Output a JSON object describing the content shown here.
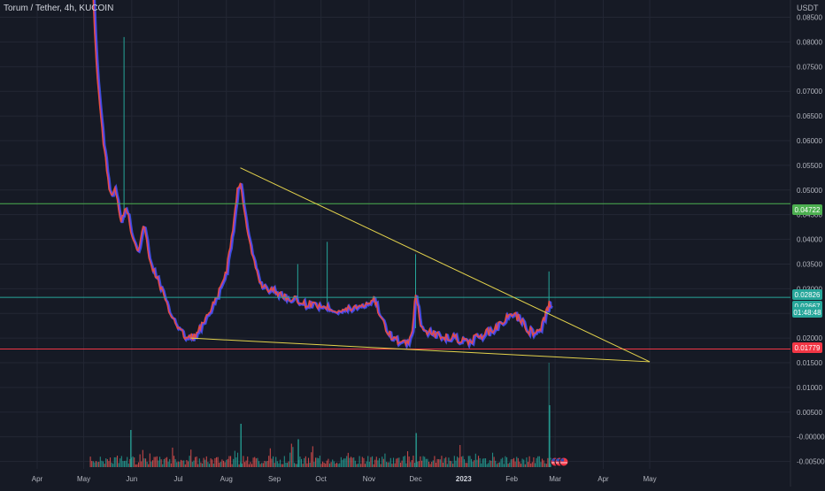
{
  "header": {
    "title": "Torum / Tether, 4h, KUCOIN",
    "currency": "USDT"
  },
  "colors": {
    "background": "#161a25",
    "grid": "#232734",
    "trendline": "#e4d34c",
    "resistance_line": "#4caf50",
    "support_line": "#f23645",
    "volume_up": "#26a69a",
    "volume_down": "#ef5350",
    "price_line_gradient": [
      "#f2512f",
      "#7b3ff2",
      "#3b5bf2"
    ]
  },
  "chart_data": {
    "type": "candlestick",
    "symbol": "Torum / Tether",
    "interval": "4h",
    "exchange": "KUCOIN",
    "quote": "USDT",
    "x_ticks": [
      "Apr",
      "May",
      "Jun",
      "Jul",
      "Aug",
      "Sep",
      "Oct",
      "Nov",
      "Dec",
      "2023",
      "Feb",
      "Mar",
      "Apr",
      "May"
    ],
    "y_ticks": [
      "0.08500",
      "0.08000",
      "0.07500",
      "0.07000",
      "0.06500",
      "0.06000",
      "0.05500",
      "0.05000",
      "0.04500",
      "0.04000",
      "0.03500",
      "0.03000",
      "0.02500",
      "0.02000",
      "0.01500",
      "0.01000",
      "0.00500",
      "-0.00000",
      "-0.00500"
    ],
    "ylim": [
      -0.0065,
      0.0885
    ],
    "price_path": [
      [
        "2022-05-07",
        0.089
      ],
      [
        "2022-05-09",
        0.076
      ],
      [
        "2022-05-12",
        0.064
      ],
      [
        "2022-05-15",
        0.056
      ],
      [
        "2022-05-18",
        0.049
      ],
      [
        "2022-05-21",
        0.05
      ],
      [
        "2022-05-25",
        0.044
      ],
      [
        "2022-05-28",
        0.047
      ],
      [
        "2022-06-01",
        0.041
      ],
      [
        "2022-06-05",
        0.038
      ],
      [
        "2022-06-09",
        0.043
      ],
      [
        "2022-06-12",
        0.036
      ],
      [
        "2022-06-16",
        0.033
      ],
      [
        "2022-06-20",
        0.03
      ],
      [
        "2022-06-24",
        0.026
      ],
      [
        "2022-06-28",
        0.024
      ],
      [
        "2022-07-02",
        0.0215
      ],
      [
        "2022-07-06",
        0.02
      ],
      [
        "2022-07-12",
        0.0205
      ],
      [
        "2022-07-16",
        0.0225
      ],
      [
        "2022-07-20",
        0.0245
      ],
      [
        "2022-07-24",
        0.027
      ],
      [
        "2022-07-28",
        0.03
      ],
      [
        "2022-08-01",
        0.034
      ],
      [
        "2022-08-05",
        0.042
      ],
      [
        "2022-08-08",
        0.05
      ],
      [
        "2022-08-10",
        0.052
      ],
      [
        "2022-08-14",
        0.042
      ],
      [
        "2022-08-18",
        0.036
      ],
      [
        "2022-08-23",
        0.031
      ],
      [
        "2022-08-28",
        0.03
      ],
      [
        "2022-09-04",
        0.029
      ],
      [
        "2022-09-12",
        0.028
      ],
      [
        "2022-09-20",
        0.027
      ],
      [
        "2022-09-28",
        0.0268
      ],
      [
        "2022-10-06",
        0.0262
      ],
      [
        "2022-10-14",
        0.0255
      ],
      [
        "2022-10-22",
        0.0262
      ],
      [
        "2022-10-30",
        0.027
      ],
      [
        "2022-11-04",
        0.028
      ],
      [
        "2022-11-10",
        0.023
      ],
      [
        "2022-11-16",
        0.02
      ],
      [
        "2022-11-22",
        0.019
      ],
      [
        "2022-11-28",
        0.02
      ],
      [
        "2022-12-01",
        0.029
      ],
      [
        "2022-12-04",
        0.0225
      ],
      [
        "2022-12-10",
        0.021
      ],
      [
        "2022-12-18",
        0.0205
      ],
      [
        "2022-12-26",
        0.02
      ],
      [
        "2023-01-03",
        0.0192
      ],
      [
        "2023-01-10",
        0.0202
      ],
      [
        "2023-01-18",
        0.0215
      ],
      [
        "2023-01-25",
        0.023
      ],
      [
        "2023-02-01",
        0.025
      ],
      [
        "2023-02-06",
        0.024
      ],
      [
        "2023-02-12",
        0.0215
      ],
      [
        "2023-02-18",
        0.021
      ],
      [
        "2023-02-22",
        0.024
      ],
      [
        "2023-02-25",
        0.027
      ],
      [
        "2023-02-26",
        0.0267
      ]
    ],
    "spikes": [
      {
        "date": "2022-05-27",
        "low": 0.044,
        "high": 0.081
      },
      {
        "date": "2022-09-16",
        "low": 0.027,
        "high": 0.035
      },
      {
        "date": "2022-10-05",
        "low": 0.0262,
        "high": 0.0395
      },
      {
        "date": "2022-12-01",
        "low": 0.022,
        "high": 0.037
      },
      {
        "date": "2023-02-25",
        "low": 0.025,
        "high": 0.0335
      }
    ],
    "annotations": {
      "trendline_upper": [
        [
          "2022-08-10",
          0.0545
        ],
        [
          "2023-05-01",
          0.0152
        ]
      ],
      "trendline_lower": [
        [
          "2022-07-09",
          0.02
        ],
        [
          "2023-05-01",
          0.0152
        ]
      ],
      "horizontal_lines": [
        {
          "value": 0.04722,
          "color": "#4caf50"
        },
        {
          "value": 0.02826,
          "color": "#26a69a"
        },
        {
          "value": 0.01779,
          "color": "#f23645"
        }
      ]
    },
    "price_labels": [
      {
        "text": "0.04722",
        "value": 0.04722,
        "bg": "#4caf50"
      },
      {
        "text": "0.02826",
        "value": 0.02826,
        "bg": "#26a69a"
      },
      {
        "text": "0.02667",
        "value": 0.02667,
        "bg": "#26a69a"
      },
      {
        "text": "01:48:48",
        "value": 0.02537,
        "bg": "#26a69a"
      },
      {
        "text": "0.01779",
        "value": 0.01779,
        "bg": "#f23645"
      }
    ],
    "volume": {
      "note_heights_fraction_of_max": "uniform noise with spikes",
      "spikes": [
        {
          "date": "2022-05-31",
          "level": 0.6
        },
        {
          "date": "2022-08-10",
          "level": 0.7
        },
        {
          "date": "2022-09-16",
          "level": 0.45
        },
        {
          "date": "2022-12-01",
          "level": 0.55
        },
        {
          "date": "2023-02-25",
          "level": 1.0
        }
      ]
    },
    "event_markers": [
      "flag-us-icon",
      "flag-us-icon",
      "flag-us-icon"
    ]
  }
}
